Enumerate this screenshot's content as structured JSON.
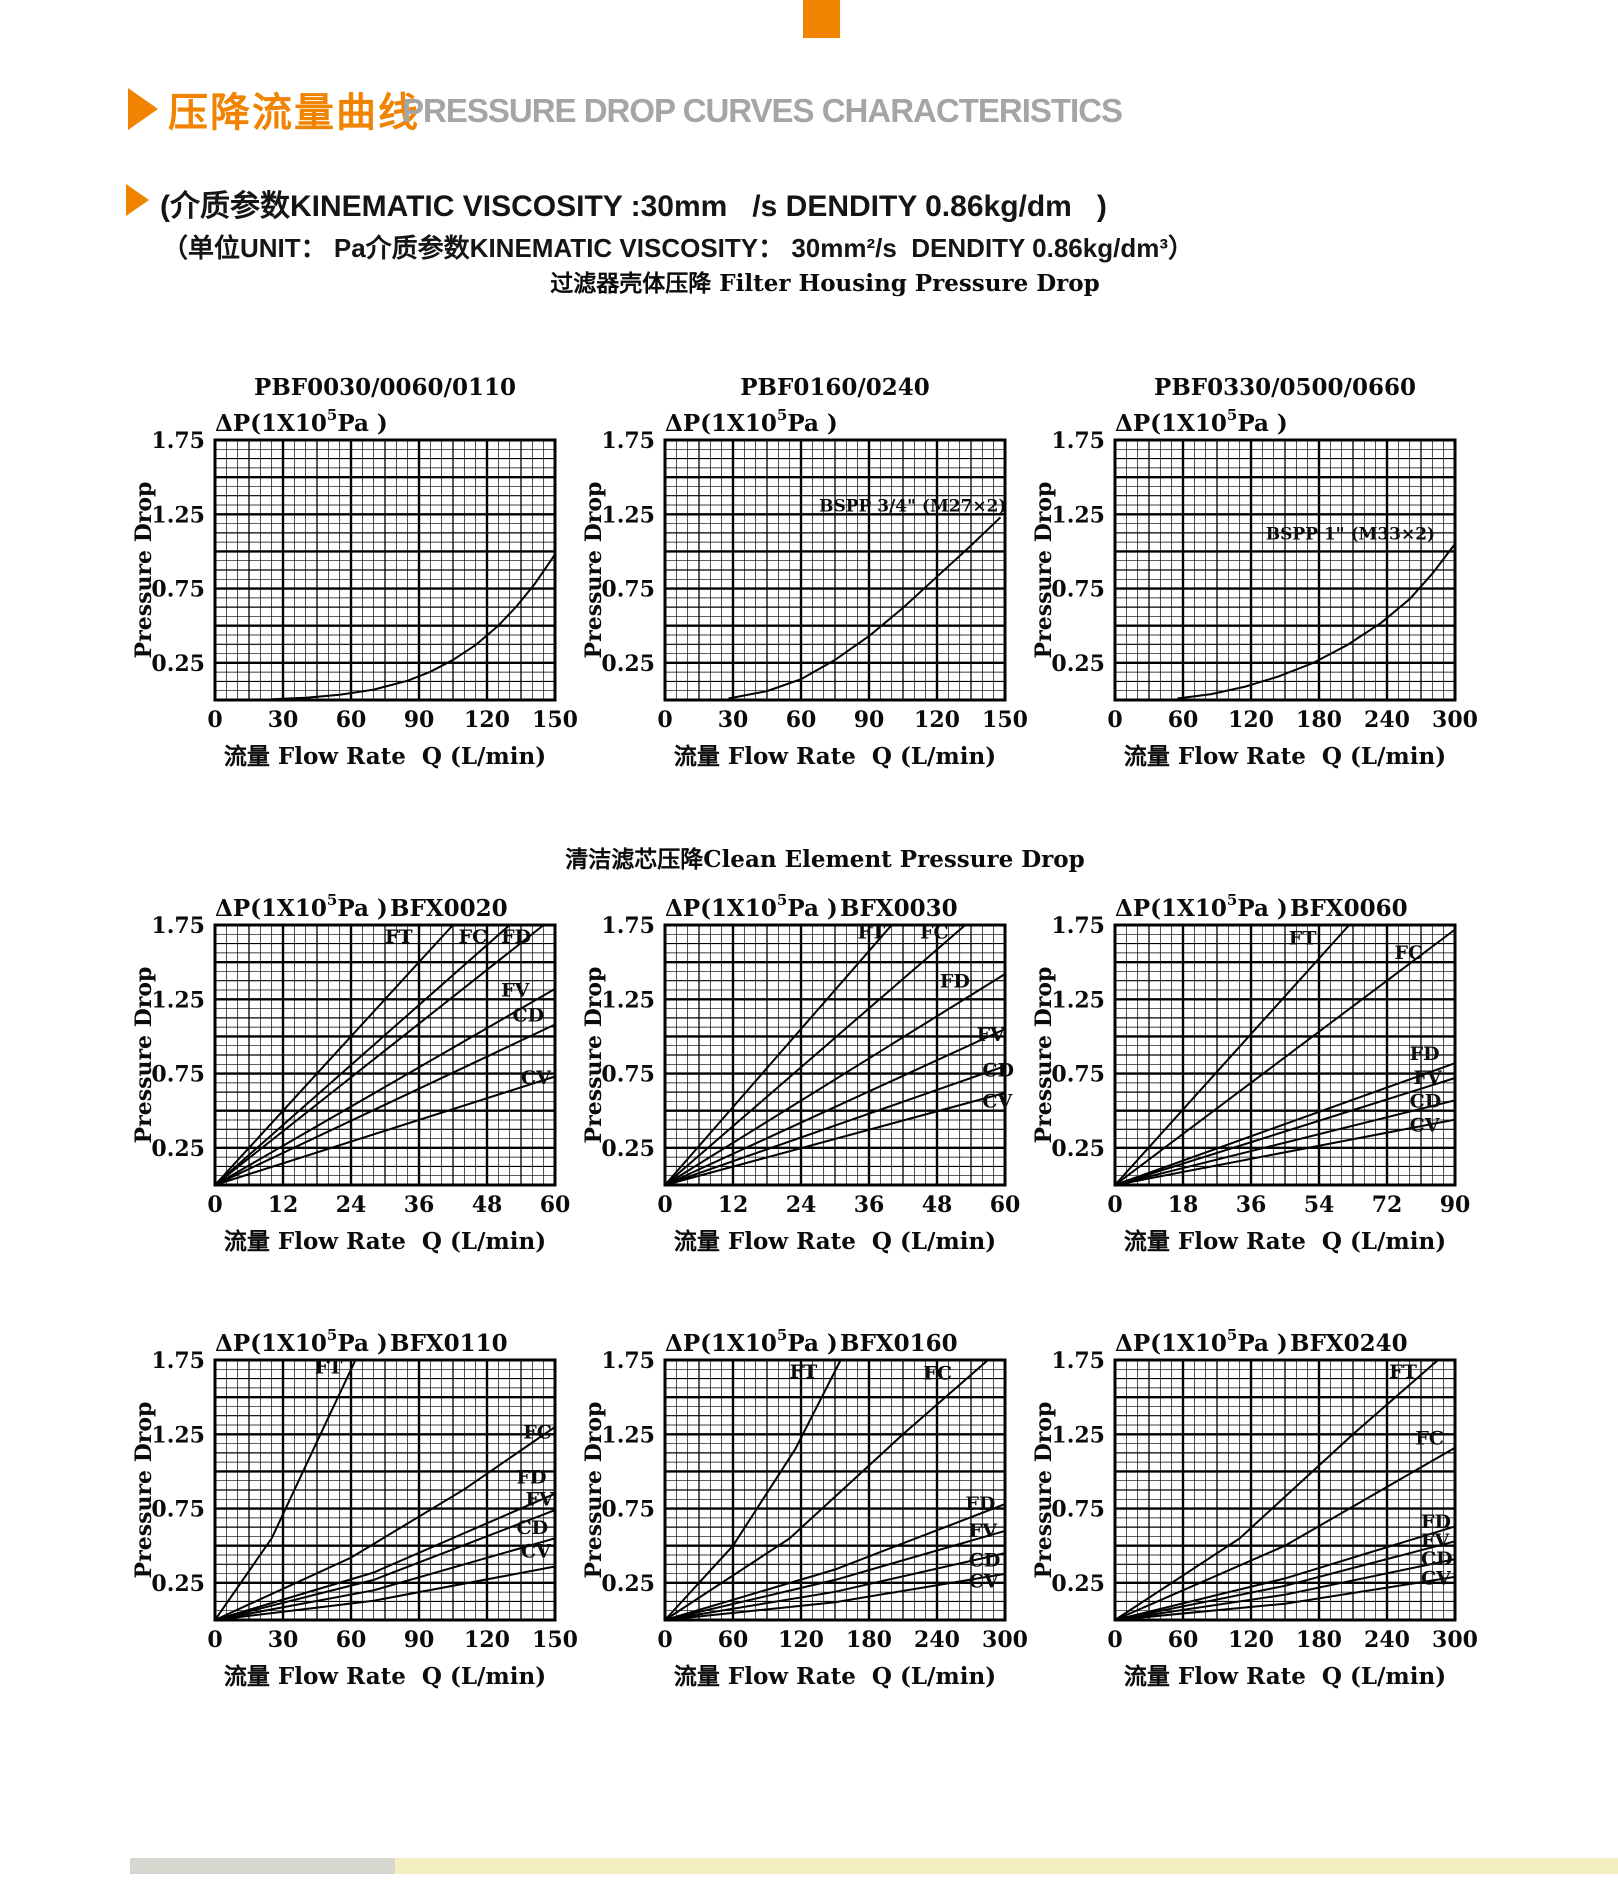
{
  "header": {
    "title_zh": "压降流量曲线",
    "title_en": "PRESSURE DROP CURVES CHARACTERISTICS",
    "subtitle1": "(介质参数KINEMATIC VISCOSITY :30mm   /s DENDITY 0.86kg/dm   )",
    "subtitle2": "（单位UNIT： Pa介质参数KINEMATIC VISCOSITY： 30mm²/s  DENDITY 0.86kg/dm³）"
  },
  "sections": {
    "housing_heading": "过滤器壳体压降 Filter Housing Pressure Drop",
    "element_heading": "清洁滤芯压降Clean Element Pressure Drop"
  },
  "colors": {
    "accent_orange": "#F08300",
    "muted_gray": "#A5A5A5",
    "ink": "#0b0b0b",
    "footer_gray": "#d7d7cf",
    "footer_yellow": "#f4efc0"
  },
  "chart_shared": {
    "dp": {
      "pre": "ΔP(1X10",
      "sup": "5",
      "post": "Pa )"
    },
    "ylabel": "Pressure Drop",
    "xlabel": "流量 Flow Rate  Q (L/min)"
  },
  "chart_data": [
    {
      "type": "line",
      "title": "PBF0030/0060/0110",
      "title_align": "center",
      "xlabel": "流量 Flow Rate  Q (L/min)",
      "ylabel": "Pressure Drop ΔP(1X10^5 Pa)",
      "xlim": [
        0,
        150
      ],
      "xticks": [
        0,
        30,
        60,
        90,
        120,
        150
      ],
      "ylim": [
        0,
        1.75
      ],
      "yticks": [
        0.25,
        0.75,
        1.25,
        1.75
      ],
      "grid": true,
      "series": [
        {
          "name": "housing",
          "points": [
            [
              25,
              0.005
            ],
            [
              40,
              0.015
            ],
            [
              55,
              0.035
            ],
            [
              70,
              0.07
            ],
            [
              85,
              0.13
            ],
            [
              95,
              0.19
            ],
            [
              105,
              0.27
            ],
            [
              115,
              0.37
            ],
            [
              125,
              0.5
            ],
            [
              133,
              0.63
            ],
            [
              141,
              0.78
            ],
            [
              150,
              0.98
            ]
          ]
        }
      ]
    },
    {
      "type": "line",
      "title": "PBF0160/0240",
      "title_align": "center",
      "xlabel": "流量 Flow Rate  Q (L/min)",
      "ylabel": "Pressure Drop ΔP(1X10^5 Pa)",
      "xlim": [
        0,
        150
      ],
      "xticks": [
        0,
        30,
        60,
        90,
        120,
        150
      ],
      "ylim": [
        0,
        1.75
      ],
      "yticks": [
        0.25,
        0.75,
        1.25,
        1.75
      ],
      "grid": true,
      "annotation": {
        "text": "BSPP 3/4\" (M27×2)",
        "x": 68,
        "y": 1.27
      },
      "series": [
        {
          "name": "housing",
          "points": [
            [
              28,
              0.01
            ],
            [
              45,
              0.06
            ],
            [
              60,
              0.14
            ],
            [
              75,
              0.27
            ],
            [
              90,
              0.43
            ],
            [
              105,
              0.62
            ],
            [
              120,
              0.83
            ],
            [
              135,
              1.04
            ],
            [
              148,
              1.23
            ]
          ]
        }
      ]
    },
    {
      "type": "line",
      "title": "PBF0330/0500/0660",
      "title_align": "center",
      "xlabel": "流量 Flow Rate  Q (L/min)",
      "ylabel": "Pressure Drop ΔP(1X10^5 Pa)",
      "xlim": [
        0,
        300
      ],
      "xticks": [
        0,
        60,
        120,
        180,
        240,
        300
      ],
      "ylim": [
        0,
        1.75
      ],
      "yticks": [
        0.25,
        0.75,
        1.25,
        1.75
      ],
      "grid": true,
      "annotation": {
        "text": "BSPP 1\" (M33×2)",
        "x": 133,
        "y": 1.08
      },
      "series": [
        {
          "name": "housing",
          "points": [
            [
              55,
              0.01
            ],
            [
              85,
              0.04
            ],
            [
              115,
              0.09
            ],
            [
              145,
              0.16
            ],
            [
              175,
              0.25
            ],
            [
              205,
              0.37
            ],
            [
              235,
              0.52
            ],
            [
              260,
              0.68
            ],
            [
              280,
              0.85
            ],
            [
              295,
              1.0
            ],
            [
              300,
              1.05
            ]
          ]
        }
      ]
    },
    {
      "type": "line",
      "title": "BFX0020",
      "title_align": "inline",
      "xlabel": "流量 Flow Rate  Q (L/min)",
      "ylabel": "Pressure Drop ΔP(1X10^5 Pa)",
      "xlim": [
        0,
        60
      ],
      "xticks": [
        0,
        12,
        24,
        36,
        48,
        60
      ],
      "ylim": [
        0,
        1.75
      ],
      "yticks": [
        0.25,
        0.75,
        1.25,
        1.75
      ],
      "grid": true,
      "series": [
        {
          "name": "FT",
          "points": [
            [
              0,
              0
            ],
            [
              42,
              1.75
            ]
          ],
          "label": [
            30,
            1.63
          ]
        },
        {
          "name": "FC",
          "points": [
            [
              0,
              0
            ],
            [
              52,
              1.75
            ]
          ],
          "label": [
            43,
            1.63
          ]
        },
        {
          "name": "FD",
          "points": [
            [
              0,
              0
            ],
            [
              58,
              1.75
            ]
          ],
          "label": [
            50.5,
            1.63
          ]
        },
        {
          "name": "FV",
          "points": [
            [
              0,
              0
            ],
            [
              60,
              1.32
            ]
          ],
          "label": [
            50.5,
            1.27
          ]
        },
        {
          "name": "CD",
          "points": [
            [
              0,
              0
            ],
            [
              60,
              1.08
            ]
          ],
          "label": [
            52.5,
            1.1
          ]
        },
        {
          "name": "CV",
          "points": [
            [
              0,
              0
            ],
            [
              60,
              0.73
            ]
          ],
          "label": [
            54,
            0.68
          ]
        }
      ]
    },
    {
      "type": "line",
      "title": "BFX0030",
      "title_align": "inline",
      "xlabel": "流量 Flow Rate  Q (L/min)",
      "ylabel": "Pressure Drop ΔP(1X10^5 Pa)",
      "xlim": [
        0,
        60
      ],
      "xticks": [
        0,
        12,
        24,
        36,
        48,
        60
      ],
      "ylim": [
        0,
        1.75
      ],
      "yticks": [
        0.25,
        0.75,
        1.25,
        1.75
      ],
      "grid": true,
      "series": [
        {
          "name": "FT",
          "points": [
            [
              0,
              0
            ],
            [
              40,
              1.75
            ]
          ],
          "label": [
            34,
            1.66
          ]
        },
        {
          "name": "FC",
          "points": [
            [
              0,
              0
            ],
            [
              53,
              1.75
            ]
          ],
          "label": [
            45,
            1.66
          ]
        },
        {
          "name": "FD",
          "points": [
            [
              0,
              0
            ],
            [
              60,
              1.42
            ]
          ],
          "label": [
            48.5,
            1.33
          ]
        },
        {
          "name": "FV",
          "points": [
            [
              0,
              0
            ],
            [
              60,
              1.05
            ]
          ],
          "label": [
            55,
            0.97
          ]
        },
        {
          "name": "CD",
          "points": [
            [
              0,
              0
            ],
            [
              60,
              0.8
            ]
          ],
          "label": [
            56,
            0.73
          ]
        },
        {
          "name": "CV",
          "points": [
            [
              0,
              0
            ],
            [
              60,
              0.62
            ]
          ],
          "label": [
            56,
            0.52
          ]
        }
      ]
    },
    {
      "type": "line",
      "title": "BFX0060",
      "title_align": "inline",
      "xlabel": "流量 Flow Rate  Q (L/min)",
      "ylabel": "Pressure Drop ΔP(1X10^5 Pa)",
      "xlim": [
        0,
        90
      ],
      "xticks": [
        0,
        18,
        36,
        54,
        72,
        90
      ],
      "ylim": [
        0,
        1.75
      ],
      "yticks": [
        0.25,
        0.75,
        1.25,
        1.75
      ],
      "grid": true,
      "series": [
        {
          "name": "FT",
          "points": [
            [
              0,
              0
            ],
            [
              62,
              1.75
            ]
          ],
          "label": [
            46,
            1.62
          ]
        },
        {
          "name": "FC",
          "points": [
            [
              0,
              0
            ],
            [
              90,
              1.72
            ]
          ],
          "label": [
            74,
            1.52
          ]
        },
        {
          "name": "FD",
          "points": [
            [
              0,
              0
            ],
            [
              90,
              0.82
            ]
          ],
          "label": [
            78,
            0.84
          ]
        },
        {
          "name": "FV",
          "points": [
            [
              0,
              0
            ],
            [
              90,
              0.72
            ]
          ],
          "label": [
            79,
            0.68
          ]
        },
        {
          "name": "CD",
          "points": [
            [
              0,
              0
            ],
            [
              90,
              0.57
            ]
          ],
          "label": [
            78,
            0.52
          ]
        },
        {
          "name": "CV",
          "points": [
            [
              0,
              0
            ],
            [
              90,
              0.44
            ]
          ],
          "label": [
            78,
            0.36
          ]
        }
      ]
    },
    {
      "type": "line",
      "title": "BFX0110",
      "title_align": "inline",
      "xlabel": "流量 Flow Rate  Q (L/min)",
      "ylabel": "Pressure Drop ΔP(1X10^5 Pa)",
      "xlim": [
        0,
        150
      ],
      "xticks": [
        0,
        30,
        60,
        90,
        120,
        150
      ],
      "ylim": [
        0,
        1.75
      ],
      "yticks": [
        0.25,
        0.75,
        1.25,
        1.75
      ],
      "grid": true,
      "series": [
        {
          "name": "FT",
          "points": [
            [
              0,
              0
            ],
            [
              25,
              0.55
            ],
            [
              45,
              1.2
            ],
            [
              62,
              1.75
            ]
          ],
          "label": [
            44,
            1.66
          ]
        },
        {
          "name": "FC",
          "points": [
            [
              0,
              0
            ],
            [
              60,
              0.42
            ],
            [
              110,
              0.88
            ],
            [
              150,
              1.3
            ]
          ],
          "label": [
            136,
            1.22
          ]
        },
        {
          "name": "FD",
          "points": [
            [
              0,
              0
            ],
            [
              70,
              0.32
            ],
            [
              150,
              0.85
            ]
          ],
          "label": [
            133,
            0.92
          ]
        },
        {
          "name": "FV",
          "points": [
            [
              0,
              0
            ],
            [
              70,
              0.27
            ],
            [
              150,
              0.74
            ]
          ],
          "label": [
            137,
            0.77
          ]
        },
        {
          "name": "CD",
          "points": [
            [
              0,
              0
            ],
            [
              70,
              0.2
            ],
            [
              150,
              0.55
            ]
          ],
          "label": [
            133,
            0.58
          ]
        },
        {
          "name": "CV",
          "points": [
            [
              0,
              0
            ],
            [
              70,
              0.13
            ],
            [
              150,
              0.36
            ]
          ],
          "label": [
            135,
            0.42
          ]
        }
      ]
    },
    {
      "type": "line",
      "title": "BFX0160",
      "title_align": "inline",
      "xlabel": "流量 Flow Rate  Q (L/min)",
      "ylabel": "Pressure Drop ΔP(1X10^5 Pa)",
      "xlim": [
        0,
        300
      ],
      "xticks": [
        0,
        60,
        120,
        180,
        240,
        300
      ],
      "ylim": [
        0,
        1.75
      ],
      "yticks": [
        0.25,
        0.75,
        1.25,
        1.75
      ],
      "grid": true,
      "series": [
        {
          "name": "FT",
          "points": [
            [
              0,
              0
            ],
            [
              60,
              0.5
            ],
            [
              115,
              1.15
            ],
            [
              155,
              1.75
            ]
          ],
          "label": [
            110,
            1.63
          ]
        },
        {
          "name": "FC",
          "points": [
            [
              0,
              0
            ],
            [
              110,
              0.55
            ],
            [
              210,
              1.25
            ],
            [
              285,
              1.75
            ]
          ],
          "label": [
            228,
            1.62
          ]
        },
        {
          "name": "FD",
          "points": [
            [
              0,
              0
            ],
            [
              150,
              0.34
            ],
            [
              300,
              0.78
            ]
          ],
          "label": [
            265,
            0.74
          ]
        },
        {
          "name": "FV",
          "points": [
            [
              0,
              0
            ],
            [
              150,
              0.27
            ],
            [
              300,
              0.6
            ]
          ],
          "label": [
            268,
            0.56
          ]
        },
        {
          "name": "CD",
          "points": [
            [
              0,
              0
            ],
            [
              150,
              0.19
            ],
            [
              300,
              0.45
            ]
          ],
          "label": [
            268,
            0.36
          ]
        },
        {
          "name": "CV",
          "points": [
            [
              0,
              0
            ],
            [
              150,
              0.12
            ],
            [
              300,
              0.31
            ]
          ],
          "label": [
            268,
            0.22
          ]
        }
      ]
    },
    {
      "type": "line",
      "title": "BFX0240",
      "title_align": "inline",
      "xlabel": "流量 Flow Rate  Q (L/min)",
      "ylabel": "Pressure Drop ΔP(1X10^5 Pa)",
      "xlim": [
        0,
        300
      ],
      "xticks": [
        0,
        60,
        120,
        180,
        240,
        300
      ],
      "ylim": [
        0,
        1.75
      ],
      "yticks": [
        0.25,
        0.75,
        1.25,
        1.75
      ],
      "grid": true,
      "series": [
        {
          "name": "FT",
          "points": [
            [
              0,
              0
            ],
            [
              110,
              0.55
            ],
            [
              210,
              1.25
            ],
            [
              285,
              1.75
            ]
          ],
          "label": [
            242,
            1.63
          ]
        },
        {
          "name": "FC",
          "points": [
            [
              0,
              0
            ],
            [
              150,
              0.5
            ],
            [
              300,
              1.16
            ]
          ],
          "label": [
            265,
            1.18
          ]
        },
        {
          "name": "FD",
          "points": [
            [
              0,
              0
            ],
            [
              150,
              0.28
            ],
            [
              300,
              0.63
            ]
          ],
          "label": [
            270,
            0.62
          ]
        },
        {
          "name": "FV",
          "points": [
            [
              0,
              0
            ],
            [
              150,
              0.23
            ],
            [
              300,
              0.53
            ]
          ],
          "label": [
            270,
            0.49
          ]
        },
        {
          "name": "CD",
          "points": [
            [
              0,
              0
            ],
            [
              150,
              0.17
            ],
            [
              300,
              0.41
            ]
          ],
          "label": [
            270,
            0.37
          ]
        },
        {
          "name": "CV",
          "points": [
            [
              0,
              0
            ],
            [
              150,
              0.11
            ],
            [
              300,
              0.29
            ]
          ],
          "label": [
            270,
            0.24
          ]
        }
      ]
    }
  ]
}
